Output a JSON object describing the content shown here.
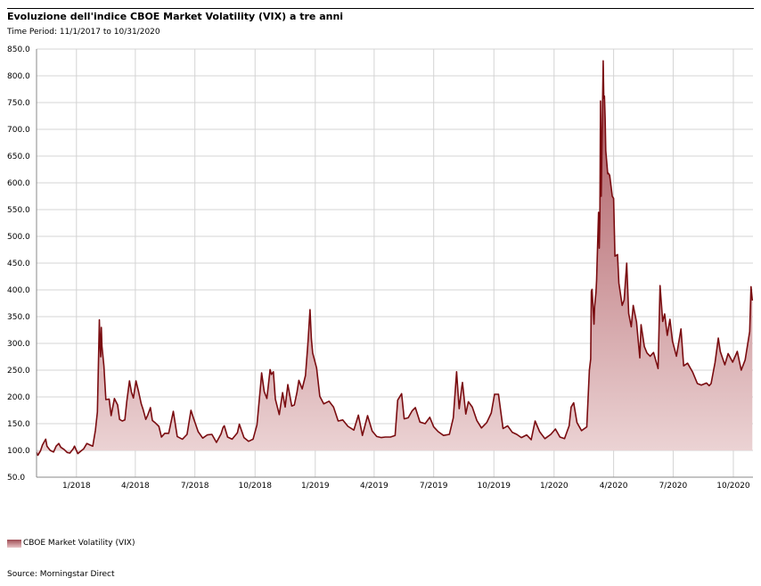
{
  "header": {
    "title": "Evoluzione dell'indice CBOE Market Volatility (VIX) a tre anni",
    "subtitle": "Time Period: 11/1/2017 to 10/31/2020"
  },
  "legend": {
    "label": "CBOE Market Volatility (VIX)"
  },
  "footer": {
    "source": "Source: Morningstar Direct"
  },
  "chart_data": {
    "type": "area",
    "title": "Evoluzione dell'indice CBOE Market Volatility (VIX) a tre anni",
    "subtitle": "Time Period: 11/1/2017 to 10/31/2020",
    "xlabel": "",
    "ylabel": "",
    "ylim": [
      50,
      850
    ],
    "baseline": 100,
    "y_ticks": [
      "850.0",
      "800.0",
      "750.0",
      "700.0",
      "650.0",
      "600.0",
      "550.0",
      "500.0",
      "450.0",
      "400.0",
      "350.0",
      "300.0",
      "250.0",
      "200.0",
      "150.0",
      "100.0",
      "50.0"
    ],
    "x_range": [
      "2017-11-01",
      "2020-10-31"
    ],
    "x_ticks": [
      {
        "label": "1/2018",
        "date": "2018-01-01"
      },
      {
        "label": "4/2018",
        "date": "2018-04-01"
      },
      {
        "label": "7/2018",
        "date": "2018-07-01"
      },
      {
        "label": "10/2018",
        "date": "2018-10-01"
      },
      {
        "label": "1/2019",
        "date": "2019-01-01"
      },
      {
        "label": "4/2019",
        "date": "2019-04-01"
      },
      {
        "label": "7/2019",
        "date": "2019-07-01"
      },
      {
        "label": "10/2019",
        "date": "2019-10-01"
      },
      {
        "label": "1/2020",
        "date": "2020-01-01"
      },
      {
        "label": "4/2020",
        "date": "2020-04-01"
      },
      {
        "label": "7/2020",
        "date": "2020-07-01"
      },
      {
        "label": "10/2020",
        "date": "2020-10-01"
      }
    ],
    "grid": true,
    "legend_position": "bottom-left",
    "colors": {
      "line": "#7a0c10",
      "fill_top": "#a85058",
      "fill_bottom": "#ecd4d5",
      "grid": "#d4d4d4"
    },
    "series": [
      {
        "name": "CBOE Market Volatility (VIX)",
        "points": [
          [
            "2017-11-01",
            96
          ],
          [
            "2017-11-03",
            91
          ],
          [
            "2017-11-07",
            99
          ],
          [
            "2017-11-10",
            110
          ],
          [
            "2017-11-15",
            121
          ],
          [
            "2017-11-17",
            108
          ],
          [
            "2017-11-22",
            100
          ],
          [
            "2017-11-27",
            97
          ],
          [
            "2017-12-01",
            108
          ],
          [
            "2017-12-05",
            113
          ],
          [
            "2017-12-08",
            106
          ],
          [
            "2017-12-13",
            102
          ],
          [
            "2017-12-18",
            96
          ],
          [
            "2017-12-22",
            95
          ],
          [
            "2017-12-27",
            103
          ],
          [
            "2017-12-29",
            108
          ],
          [
            "2018-01-03",
            94
          ],
          [
            "2018-01-08",
            99
          ],
          [
            "2018-01-12",
            103
          ],
          [
            "2018-01-17",
            113
          ],
          [
            "2018-01-22",
            110
          ],
          [
            "2018-01-26",
            108
          ],
          [
            "2018-01-30",
            138
          ],
          [
            "2018-02-02",
            172
          ],
          [
            "2018-02-05",
            344
          ],
          [
            "2018-02-06",
            300
          ],
          [
            "2018-02-07",
            275
          ],
          [
            "2018-02-08",
            330
          ],
          [
            "2018-02-09",
            295
          ],
          [
            "2018-02-12",
            258
          ],
          [
            "2018-02-15",
            195
          ],
          [
            "2018-02-20",
            196
          ],
          [
            "2018-02-23",
            165
          ],
          [
            "2018-02-28",
            197
          ],
          [
            "2018-03-05",
            185
          ],
          [
            "2018-03-08",
            158
          ],
          [
            "2018-03-12",
            155
          ],
          [
            "2018-03-16",
            157
          ],
          [
            "2018-03-19",
            192
          ],
          [
            "2018-03-23",
            230
          ],
          [
            "2018-03-26",
            209
          ],
          [
            "2018-03-29",
            198
          ],
          [
            "2018-04-02",
            230
          ],
          [
            "2018-04-06",
            210
          ],
          [
            "2018-04-10",
            187
          ],
          [
            "2018-04-13",
            176
          ],
          [
            "2018-04-17",
            158
          ],
          [
            "2018-04-20",
            166
          ],
          [
            "2018-04-24",
            180
          ],
          [
            "2018-04-27",
            156
          ],
          [
            "2018-05-02",
            151
          ],
          [
            "2018-05-07",
            145
          ],
          [
            "2018-05-11",
            125
          ],
          [
            "2018-05-16",
            132
          ],
          [
            "2018-05-22",
            132
          ],
          [
            "2018-05-29",
            173
          ],
          [
            "2018-06-04",
            126
          ],
          [
            "2018-06-12",
            121
          ],
          [
            "2018-06-19",
            130
          ],
          [
            "2018-06-25",
            175
          ],
          [
            "2018-06-29",
            160
          ],
          [
            "2018-07-06",
            135
          ],
          [
            "2018-07-13",
            123
          ],
          [
            "2018-07-20",
            129
          ],
          [
            "2018-07-27",
            130
          ],
          [
            "2018-08-03",
            115
          ],
          [
            "2018-08-10",
            131
          ],
          [
            "2018-08-13",
            143
          ],
          [
            "2018-08-15",
            146
          ],
          [
            "2018-08-20",
            125
          ],
          [
            "2018-08-27",
            121
          ],
          [
            "2018-09-04",
            133
          ],
          [
            "2018-09-07",
            149
          ],
          [
            "2018-09-14",
            124
          ],
          [
            "2018-09-21",
            117
          ],
          [
            "2018-09-28",
            121
          ],
          [
            "2018-10-04",
            148
          ],
          [
            "2018-10-10",
            228
          ],
          [
            "2018-10-11",
            245
          ],
          [
            "2018-10-15",
            210
          ],
          [
            "2018-10-19",
            197
          ],
          [
            "2018-10-24",
            251
          ],
          [
            "2018-10-26",
            242
          ],
          [
            "2018-10-29",
            247
          ],
          [
            "2018-11-01",
            196
          ],
          [
            "2018-11-07",
            167
          ],
          [
            "2018-11-12",
            208
          ],
          [
            "2018-11-16",
            181
          ],
          [
            "2018-11-20",
            223
          ],
          [
            "2018-11-26",
            183
          ],
          [
            "2018-11-30",
            185
          ],
          [
            "2018-12-04",
            208
          ],
          [
            "2018-12-07",
            231
          ],
          [
            "2018-12-12",
            215
          ],
          [
            "2018-12-17",
            240
          ],
          [
            "2018-12-20",
            288
          ],
          [
            "2018-12-21",
            304
          ],
          [
            "2018-12-24",
            363
          ],
          [
            "2018-12-26",
            309
          ],
          [
            "2018-12-28",
            282
          ],
          [
            "2019-01-03",
            254
          ],
          [
            "2019-01-08",
            201
          ],
          [
            "2019-01-14",
            187
          ],
          [
            "2019-01-22",
            192
          ],
          [
            "2019-01-29",
            181
          ],
          [
            "2019-02-05",
            155
          ],
          [
            "2019-02-12",
            157
          ],
          [
            "2019-02-20",
            145
          ],
          [
            "2019-03-01",
            138
          ],
          [
            "2019-03-08",
            166
          ],
          [
            "2019-03-14",
            128
          ],
          [
            "2019-03-22",
            165
          ],
          [
            "2019-03-29",
            136
          ],
          [
            "2019-04-05",
            126
          ],
          [
            "2019-04-12",
            124
          ],
          [
            "2019-04-18",
            125
          ],
          [
            "2019-04-26",
            125
          ],
          [
            "2019-05-03",
            128
          ],
          [
            "2019-05-07",
            194
          ],
          [
            "2019-05-13",
            206
          ],
          [
            "2019-05-17",
            159
          ],
          [
            "2019-05-23",
            161
          ],
          [
            "2019-05-29",
            174
          ],
          [
            "2019-06-03",
            180
          ],
          [
            "2019-06-10",
            153
          ],
          [
            "2019-06-18",
            150
          ],
          [
            "2019-06-25",
            162
          ],
          [
            "2019-07-01",
            144
          ],
          [
            "2019-07-08",
            135
          ],
          [
            "2019-07-16",
            128
          ],
          [
            "2019-07-25",
            130
          ],
          [
            "2019-07-31",
            161
          ],
          [
            "2019-08-05",
            247
          ],
          [
            "2019-08-07",
            210
          ],
          [
            "2019-08-09",
            178
          ],
          [
            "2019-08-13",
            220
          ],
          [
            "2019-08-14",
            227
          ],
          [
            "2019-08-19",
            168
          ],
          [
            "2019-08-23",
            191
          ],
          [
            "2019-08-29",
            181
          ],
          [
            "2019-09-05",
            156
          ],
          [
            "2019-09-12",
            142
          ],
          [
            "2019-09-20",
            152
          ],
          [
            "2019-09-27",
            170
          ],
          [
            "2019-10-02",
            205
          ],
          [
            "2019-10-08",
            205
          ],
          [
            "2019-10-15",
            141
          ],
          [
            "2019-10-22",
            146
          ],
          [
            "2019-10-29",
            134
          ],
          [
            "2019-11-05",
            130
          ],
          [
            "2019-11-12",
            124
          ],
          [
            "2019-11-20",
            129
          ],
          [
            "2019-11-27",
            120
          ],
          [
            "2019-12-03",
            155
          ],
          [
            "2019-12-10",
            135
          ],
          [
            "2019-12-18",
            122
          ],
          [
            "2019-12-27",
            130
          ],
          [
            "2020-01-03",
            140
          ],
          [
            "2020-01-10",
            125
          ],
          [
            "2020-01-17",
            122
          ],
          [
            "2020-01-24",
            146
          ],
          [
            "2020-01-27",
            181
          ],
          [
            "2020-01-31",
            189
          ],
          [
            "2020-02-05",
            152
          ],
          [
            "2020-02-12",
            137
          ],
          [
            "2020-02-20",
            144
          ],
          [
            "2020-02-24",
            250
          ],
          [
            "2020-02-26",
            271
          ],
          [
            "2020-02-27",
            397
          ],
          [
            "2020-02-28",
            401
          ],
          [
            "2020-03-02",
            336
          ],
          [
            "2020-03-03",
            369
          ],
          [
            "2020-03-05",
            395
          ],
          [
            "2020-03-06",
            418
          ],
          [
            "2020-03-09",
            545
          ],
          [
            "2020-03-10",
            478
          ],
          [
            "2020-03-11",
            537
          ],
          [
            "2020-03-12",
            753
          ],
          [
            "2020-03-13",
            575
          ],
          [
            "2020-03-16",
            828
          ],
          [
            "2020-03-17",
            758
          ],
          [
            "2020-03-18",
            762
          ],
          [
            "2020-03-19",
            720
          ],
          [
            "2020-03-20",
            660
          ],
          [
            "2020-03-23",
            617
          ],
          [
            "2020-03-24",
            618
          ],
          [
            "2020-03-26",
            614
          ],
          [
            "2020-03-30",
            575
          ],
          [
            "2020-04-01",
            571
          ],
          [
            "2020-04-03",
            463
          ],
          [
            "2020-04-07",
            466
          ],
          [
            "2020-04-09",
            413
          ],
          [
            "2020-04-14",
            371
          ],
          [
            "2020-04-17",
            381
          ],
          [
            "2020-04-21",
            450
          ],
          [
            "2020-04-24",
            356
          ],
          [
            "2020-04-28",
            331
          ],
          [
            "2020-05-01",
            371
          ],
          [
            "2020-05-06",
            340
          ],
          [
            "2020-05-11",
            273
          ],
          [
            "2020-05-13",
            335
          ],
          [
            "2020-05-18",
            294
          ],
          [
            "2020-05-22",
            282
          ],
          [
            "2020-05-27",
            276
          ],
          [
            "2020-06-01",
            283
          ],
          [
            "2020-06-08",
            253
          ],
          [
            "2020-06-11",
            408
          ],
          [
            "2020-06-15",
            341
          ],
          [
            "2020-06-18",
            355
          ],
          [
            "2020-06-22",
            315
          ],
          [
            "2020-06-26",
            345
          ],
          [
            "2020-06-30",
            304
          ],
          [
            "2020-07-06",
            276
          ],
          [
            "2020-07-13",
            327
          ],
          [
            "2020-07-17",
            258
          ],
          [
            "2020-07-23",
            263
          ],
          [
            "2020-07-31",
            246
          ],
          [
            "2020-08-07",
            225
          ],
          [
            "2020-08-13",
            222
          ],
          [
            "2020-08-21",
            226
          ],
          [
            "2020-08-25",
            221
          ],
          [
            "2020-08-28",
            225
          ],
          [
            "2020-09-03",
            264
          ],
          [
            "2020-09-08",
            310
          ],
          [
            "2020-09-11",
            285
          ],
          [
            "2020-09-18",
            260
          ],
          [
            "2020-09-23",
            281
          ],
          [
            "2020-09-30",
            265
          ],
          [
            "2020-10-07",
            285
          ],
          [
            "2020-10-13",
            250
          ],
          [
            "2020-10-19",
            269
          ],
          [
            "2020-10-26",
            322
          ],
          [
            "2020-10-28",
            406
          ],
          [
            "2020-10-30",
            380
          ]
        ]
      }
    ]
  }
}
